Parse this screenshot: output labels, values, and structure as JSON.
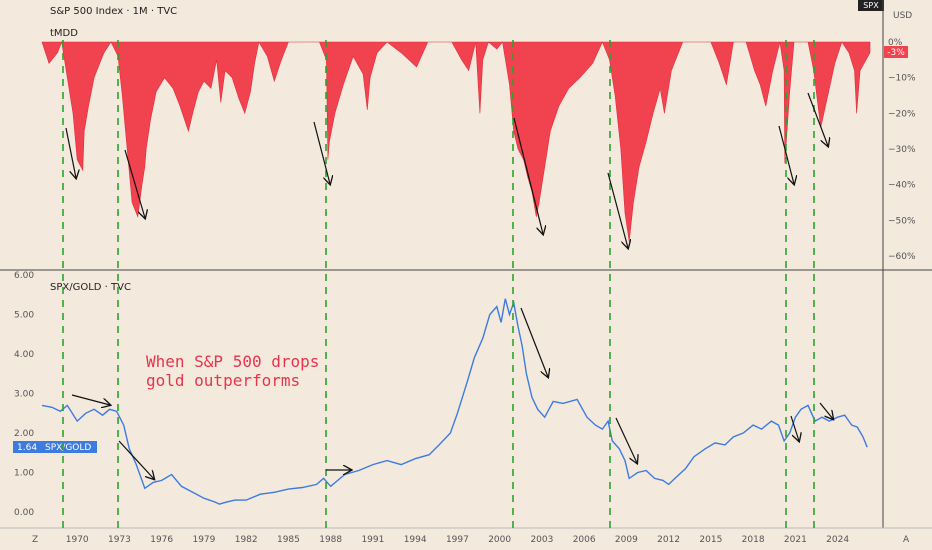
{
  "header": {
    "top_title": "S&P 500 Index · 1M · TVC",
    "spx_badge": "SPX",
    "currency": "USD"
  },
  "colors": {
    "background": "#f3e9dc",
    "drawdown_fill": "#f0424f",
    "ratio_line": "#3d7be0",
    "guide_lines": "#2aa52a",
    "arrows": "#111111",
    "annotation": "#e8344d",
    "last_badge_dd": "#f0424f",
    "last_badge_ratio": "#3d7be0"
  },
  "panes": {
    "drawdown": {
      "title": "tMDD",
      "last_value_label": "-3%"
    },
    "ratio": {
      "title": "SPX/GOLD · TVC",
      "last_value_label": "1.64",
      "last_value_name": "SPX/GOLD"
    }
  },
  "annotation_text": [
    "When S&P 500 drops",
    "gold outperforms"
  ],
  "corner_labels": {
    "left": "Z",
    "right": "A"
  },
  "chart_data": [
    {
      "type": "area",
      "title": "tMDD",
      "ylim": [
        -60,
        0
      ],
      "y_ticks": [
        0,
        -10,
        -20,
        -30,
        -40,
        -50,
        -60
      ],
      "y_tick_labels": [
        "0%",
        "−10%",
        "−20%",
        "−30%",
        "−40%",
        "−50%",
        "−60%"
      ],
      "x_range": [
        1967.5,
        2026.3
      ],
      "series": [
        {
          "x": [
            1967.5,
            1968.0,
            1968.6,
            1968.9,
            1969.3,
            1969.7,
            1970.0,
            1970.4,
            1970.5,
            1970.8,
            1971.2,
            1971.6,
            1971.9,
            1972.4,
            1972.9,
            1973.2,
            1973.5,
            1973.9,
            1974.3,
            1974.6,
            1974.8,
            1974.9,
            1975.2,
            1975.6,
            1976.2,
            1976.8,
            1977.3,
            1977.9,
            1978.2,
            1978.6,
            1979.0,
            1979.5,
            1979.9,
            1980.2,
            1980.5,
            1981.0,
            1981.5,
            1981.9,
            1982.3,
            1982.6,
            1982.9,
            1983.5,
            1984.0,
            1984.5,
            1985.0,
            1985.8,
            1986.5,
            1987.2,
            1987.7,
            1987.8,
            1987.9,
            1988.3,
            1988.9,
            1989.6,
            1990.3,
            1990.6,
            1990.8,
            1991.3,
            1992.0,
            1993.0,
            1994.1,
            1994.9,
            1995.6,
            1996.6,
            1997.3,
            1997.8,
            1998.3,
            1998.6,
            1998.8,
            1999.2,
            1999.8,
            2000.2,
            2000.7,
            2001.0,
            2001.3,
            2001.7,
            2002.0,
            2002.3,
            2002.6,
            2002.8,
            2003.2,
            2003.6,
            2004.2,
            2004.9,
            2005.7,
            2006.6,
            2007.3,
            2007.8,
            2008.2,
            2008.6,
            2008.9,
            2009.2,
            2009.5,
            2009.9,
            2010.4,
            2010.9,
            2011.4,
            2011.7,
            2012.2,
            2013.0,
            2014.0,
            2015.0,
            2015.6,
            2016.1,
            2016.6,
            2017.5,
            2018.1,
            2018.5,
            2018.9,
            2019.4,
            2019.9,
            2020.2,
            2020.25,
            2020.6,
            2020.9,
            2021.5,
            2021.9,
            2022.3,
            2022.8,
            2023.3,
            2023.8,
            2024.3,
            2024.8,
            2025.2,
            2025.35,
            2025.6,
            2026.3
          ],
          "y": [
            0,
            -6,
            -3,
            0,
            -10,
            -20,
            -33,
            -36,
            -25,
            -18,
            -10,
            -6,
            -3,
            0,
            -4,
            -15,
            -28,
            -45,
            -49,
            -40,
            -35,
            -30,
            -22,
            -14,
            -10,
            -13,
            -18,
            -25,
            -20,
            -14,
            -11,
            -13,
            -5,
            -17,
            -8,
            -10,
            -16,
            -20,
            -14,
            -6,
            0,
            -4,
            -11,
            -5,
            0,
            0,
            0,
            0,
            -5,
            -33,
            -28,
            -20,
            -12,
            -4,
            -9,
            -19,
            -10,
            -3,
            0,
            -3,
            -7,
            0,
            0,
            0,
            -5,
            -8,
            0,
            -20,
            -5,
            0,
            -2,
            0,
            -12,
            -25,
            -30,
            -33,
            -38,
            -42,
            -49,
            -45,
            -35,
            -25,
            -18,
            -13,
            -10,
            -6,
            0,
            -5,
            -15,
            -30,
            -48,
            -56,
            -45,
            -35,
            -28,
            -20,
            -13,
            -20,
            -8,
            0,
            0,
            0,
            -6,
            -12,
            0,
            0,
            -8,
            -12,
            -18,
            -8,
            0,
            -8,
            -34,
            -14,
            0,
            0,
            0,
            -8,
            -24,
            -15,
            -6,
            0,
            -3,
            -8,
            -20,
            -8,
            -3
          ]
        }
      ]
    },
    {
      "type": "line",
      "title": "SPX/GOLD · TVC",
      "ylim": [
        0,
        6
      ],
      "y_ticks": [
        0,
        1,
        2,
        3,
        4,
        5,
        6
      ],
      "y_tick_labels": [
        "0.00",
        "1.00",
        "2.00",
        "3.00",
        "4.00",
        "5.00",
        "6.00"
      ],
      "x_ticks": [
        1970,
        1973,
        1976,
        1979,
        1982,
        1985,
        1988,
        1991,
        1994,
        1997,
        2000,
        2003,
        2006,
        2009,
        2012,
        2015,
        2018,
        2021,
        2024
      ],
      "x_range": [
        1967.5,
        2026.3
      ],
      "series": [
        {
          "name": "SPX/GOLD",
          "x": [
            1967.5,
            1968.2,
            1968.8,
            1969.3,
            1970.0,
            1970.6,
            1971.2,
            1971.8,
            1972.3,
            1972.8,
            1973.3,
            1973.7,
            1974.2,
            1974.8,
            1975.4,
            1976.0,
            1976.7,
            1977.4,
            1978.2,
            1979.0,
            1979.8,
            1980.1,
            1980.6,
            1981.2,
            1982.0,
            1983.0,
            1984.0,
            1985.0,
            1986.0,
            1987.0,
            1987.5,
            1988.0,
            1989.0,
            1990.0,
            1991.0,
            1992.0,
            1993.0,
            1994.0,
            1995.0,
            1995.7,
            1996.5,
            1997.0,
            1997.7,
            1998.2,
            1998.8,
            1999.3,
            1999.8,
            2000.1,
            2000.4,
            2000.7,
            2001.0,
            2001.3,
            2001.6,
            2001.9,
            2002.3,
            2002.7,
            2003.2,
            2003.8,
            2004.5,
            2005.5,
            2006.2,
            2006.8,
            2007.3,
            2007.7,
            2008.0,
            2008.5,
            2008.9,
            2009.2,
            2009.8,
            2010.4,
            2011.0,
            2011.6,
            2012.0,
            2012.6,
            2013.2,
            2013.8,
            2014.6,
            2015.3,
            2016.0,
            2016.6,
            2017.3,
            2018.0,
            2018.6,
            2019.3,
            2019.8,
            2020.2,
            2020.6,
            2021.0,
            2021.4,
            2021.9,
            2022.4,
            2022.9,
            2023.4,
            2024.0,
            2024.5,
            2025.0,
            2025.4,
            2025.8,
            2026.1
          ],
          "y": [
            2.7,
            2.65,
            2.55,
            2.7,
            2.3,
            2.5,
            2.6,
            2.45,
            2.6,
            2.55,
            2.2,
            1.6,
            1.2,
            0.6,
            0.75,
            0.8,
            0.95,
            0.65,
            0.5,
            0.35,
            0.25,
            0.2,
            0.25,
            0.3,
            0.3,
            0.45,
            0.5,
            0.58,
            0.62,
            0.7,
            0.85,
            0.65,
            0.95,
            1.05,
            1.2,
            1.3,
            1.2,
            1.35,
            1.45,
            1.7,
            2.0,
            2.5,
            3.3,
            3.9,
            4.4,
            5.0,
            5.2,
            4.8,
            5.4,
            5.0,
            5.3,
            4.7,
            4.2,
            3.5,
            2.9,
            2.6,
            2.4,
            2.8,
            2.75,
            2.85,
            2.4,
            2.2,
            2.1,
            2.3,
            1.8,
            1.6,
            1.3,
            0.85,
            1.0,
            1.05,
            0.85,
            0.8,
            0.7,
            0.9,
            1.1,
            1.4,
            1.6,
            1.75,
            1.7,
            1.9,
            2.0,
            2.2,
            2.1,
            2.3,
            2.2,
            1.8,
            2.0,
            2.4,
            2.6,
            2.7,
            2.3,
            2.4,
            2.3,
            2.4,
            2.45,
            2.2,
            2.15,
            1.9,
            1.64
          ]
        }
      ]
    }
  ]
}
